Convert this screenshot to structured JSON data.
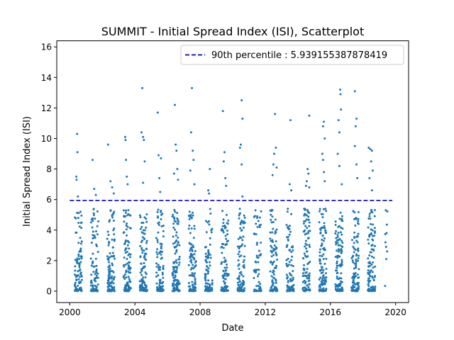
{
  "chart_data": {
    "type": "scatter",
    "title": "SUMMIT - Initial Spread Index (ISI), Scatterplot",
    "xlabel": "Date",
    "ylabel": "Initial Spread Index (ISI)",
    "xlim": [
      1999.2,
      2020.8
    ],
    "ylim": [
      -0.75,
      16.4
    ],
    "xticks": [
      2000,
      2004,
      2008,
      2012,
      2016,
      2020
    ],
    "xtick_labels": [
      "2000",
      "2004",
      "2008",
      "2012",
      "2016",
      "2020"
    ],
    "yticks": [
      0,
      2,
      4,
      6,
      8,
      10,
      12,
      14,
      16
    ],
    "ytick_labels": [
      "0",
      "2",
      "4",
      "6",
      "8",
      "10",
      "12",
      "14",
      "16"
    ],
    "grid": false,
    "legend_position": "top-right",
    "point_color": "#1f77b4",
    "reference_line": {
      "label": "90th percentile : 5.939155387878419",
      "value": 5.939155387878419,
      "color": "#0000cc",
      "style": "dashed"
    },
    "seasons": [
      {
        "year": 2000,
        "x_start": 2000.3,
        "x_end": 2000.75,
        "points": 95,
        "max": 10.3,
        "outliers": [
          [
            2000.45,
            10.3
          ],
          [
            2000.47,
            9.1
          ],
          [
            2000.4,
            7.5
          ],
          [
            2000.42,
            7.3
          ],
          [
            2000.5,
            6.2
          ]
        ]
      },
      {
        "year": 2001,
        "x_start": 2001.3,
        "x_end": 2001.75,
        "points": 95,
        "max": 8.6,
        "outliers": [
          [
            2001.4,
            8.6
          ],
          [
            2001.5,
            6.7
          ],
          [
            2001.6,
            6.3
          ]
        ]
      },
      {
        "year": 2002,
        "x_start": 2002.3,
        "x_end": 2002.75,
        "points": 110,
        "max": 9.6,
        "outliers": [
          [
            2002.35,
            9.6
          ],
          [
            2002.5,
            7.2
          ],
          [
            2002.6,
            6.8
          ],
          [
            2002.7,
            6.4
          ]
        ]
      },
      {
        "year": 2003,
        "x_start": 2003.3,
        "x_end": 2003.75,
        "points": 110,
        "max": 10.1,
        "outliers": [
          [
            2003.4,
            10.1
          ],
          [
            2003.42,
            9.9
          ],
          [
            2003.45,
            8.6
          ],
          [
            2003.5,
            7.5
          ],
          [
            2003.55,
            7.0
          ]
        ]
      },
      {
        "year": 2004,
        "x_start": 2004.3,
        "x_end": 2004.75,
        "points": 110,
        "max": 13.3,
        "outliers": [
          [
            2004.45,
            13.3
          ],
          [
            2004.4,
            10.4
          ],
          [
            2004.5,
            10.1
          ],
          [
            2004.55,
            9.9
          ],
          [
            2004.6,
            8.5
          ],
          [
            2004.5,
            7.1
          ]
        ]
      },
      {
        "year": 2005,
        "x_start": 2005.3,
        "x_end": 2005.75,
        "points": 105,
        "max": 11.7,
        "outliers": [
          [
            2005.4,
            11.7
          ],
          [
            2005.45,
            8.9
          ],
          [
            2005.6,
            8.7
          ],
          [
            2005.5,
            7.4
          ],
          [
            2005.55,
            6.5
          ]
        ]
      },
      {
        "year": 2006,
        "x_start": 2006.3,
        "x_end": 2006.75,
        "points": 115,
        "max": 12.2,
        "outliers": [
          [
            2006.45,
            12.2
          ],
          [
            2006.5,
            9.6
          ],
          [
            2006.55,
            9.2
          ],
          [
            2006.6,
            8.0
          ],
          [
            2006.4,
            7.7
          ],
          [
            2006.65,
            7.3
          ]
        ]
      },
      {
        "year": 2007,
        "x_start": 2007.3,
        "x_end": 2007.75,
        "points": 110,
        "max": 13.3,
        "outliers": [
          [
            2007.5,
            13.3
          ],
          [
            2007.45,
            10.4
          ],
          [
            2007.55,
            9.2
          ],
          [
            2007.6,
            8.6
          ],
          [
            2007.4,
            7.9
          ],
          [
            2007.65,
            7.0
          ]
        ]
      },
      {
        "year": 2008,
        "x_start": 2008.3,
        "x_end": 2008.75,
        "points": 95,
        "max": 8.0,
        "outliers": [
          [
            2008.6,
            8.0
          ],
          [
            2008.5,
            6.6
          ],
          [
            2008.55,
            6.4
          ]
        ]
      },
      {
        "year": 2009,
        "x_start": 2009.3,
        "x_end": 2009.75,
        "points": 100,
        "max": 11.8,
        "outliers": [
          [
            2009.4,
            11.8
          ],
          [
            2009.5,
            9.1
          ],
          [
            2009.45,
            8.5
          ],
          [
            2009.55,
            7.4
          ],
          [
            2009.6,
            6.9
          ]
        ]
      },
      {
        "year": 2010,
        "x_start": 2010.3,
        "x_end": 2010.75,
        "points": 105,
        "max": 12.5,
        "outliers": [
          [
            2010.55,
            12.5
          ],
          [
            2010.6,
            11.3
          ],
          [
            2010.5,
            9.6
          ],
          [
            2010.45,
            9.4
          ],
          [
            2010.55,
            8.3
          ],
          [
            2010.6,
            6.2
          ]
        ]
      },
      {
        "year": 2011,
        "x_start": 2011.3,
        "x_end": 2011.75,
        "points": 60,
        "max": 5.3,
        "outliers": [
          [
            2011.4,
            5.3
          ],
          [
            2011.5,
            4.8
          ]
        ]
      },
      {
        "year": 2012,
        "x_start": 2012.3,
        "x_end": 2012.75,
        "points": 100,
        "max": 11.6,
        "outliers": [
          [
            2012.6,
            11.6
          ],
          [
            2012.65,
            9.4
          ],
          [
            2012.55,
            9.0
          ],
          [
            2012.5,
            8.3
          ],
          [
            2012.7,
            8.1
          ],
          [
            2012.45,
            7.6
          ]
        ]
      },
      {
        "year": 2013,
        "x_start": 2013.3,
        "x_end": 2013.75,
        "points": 95,
        "max": 11.2,
        "outliers": [
          [
            2013.55,
            11.2
          ],
          [
            2013.5,
            7.0
          ],
          [
            2013.6,
            6.6
          ]
        ]
      },
      {
        "year": 2014,
        "x_start": 2014.3,
        "x_end": 2014.75,
        "points": 105,
        "max": 11.5,
        "outliers": [
          [
            2014.7,
            11.5
          ],
          [
            2014.6,
            8.0
          ],
          [
            2014.65,
            7.7
          ],
          [
            2014.55,
            7.2
          ],
          [
            2014.5,
            6.9
          ],
          [
            2014.7,
            6.8
          ]
        ]
      },
      {
        "year": 2015,
        "x_start": 2015.3,
        "x_end": 2015.75,
        "points": 115,
        "max": 11.1,
        "outliers": [
          [
            2015.6,
            11.1
          ],
          [
            2015.55,
            10.8
          ],
          [
            2015.65,
            10.0
          ],
          [
            2015.5,
            9.0
          ],
          [
            2015.55,
            8.6
          ],
          [
            2015.6,
            7.8
          ],
          [
            2015.65,
            7.2
          ]
        ]
      },
      {
        "year": 2016,
        "x_start": 2016.3,
        "x_end": 2016.75,
        "points": 120,
        "max": 13.2,
        "outliers": [
          [
            2016.6,
            13.2
          ],
          [
            2016.62,
            12.9
          ],
          [
            2016.65,
            11.9
          ],
          [
            2016.5,
            11.2
          ],
          [
            2016.55,
            10.4
          ],
          [
            2016.45,
            9.0
          ],
          [
            2016.55,
            8.2
          ],
          [
            2016.7,
            7.0
          ]
        ]
      },
      {
        "year": 2017,
        "x_start": 2017.3,
        "x_end": 2017.75,
        "points": 115,
        "max": 13.1,
        "outliers": [
          [
            2017.5,
            13.1
          ],
          [
            2017.6,
            11.3
          ],
          [
            2017.55,
            10.8
          ],
          [
            2017.5,
            9.5
          ],
          [
            2017.6,
            8.3
          ],
          [
            2017.65,
            7.4
          ]
        ]
      },
      {
        "year": 2018,
        "x_start": 2018.3,
        "x_end": 2018.75,
        "points": 110,
        "max": 9.4,
        "outliers": [
          [
            2018.35,
            9.4
          ],
          [
            2018.45,
            9.3
          ],
          [
            2018.55,
            9.2
          ],
          [
            2018.5,
            8.5
          ],
          [
            2018.6,
            7.9
          ],
          [
            2018.4,
            7.4
          ],
          [
            2018.55,
            6.6
          ]
        ]
      },
      {
        "year": 2019,
        "x_start": 2019.35,
        "x_end": 2019.5,
        "points": 5,
        "max": 5.3,
        "outliers": [
          [
            2019.4,
            5.3
          ],
          [
            2019.45,
            3.8
          ],
          [
            2019.42,
            2.9
          ],
          [
            2019.48,
            2.6
          ],
          [
            2019.43,
            2.1
          ]
        ]
      }
    ]
  }
}
